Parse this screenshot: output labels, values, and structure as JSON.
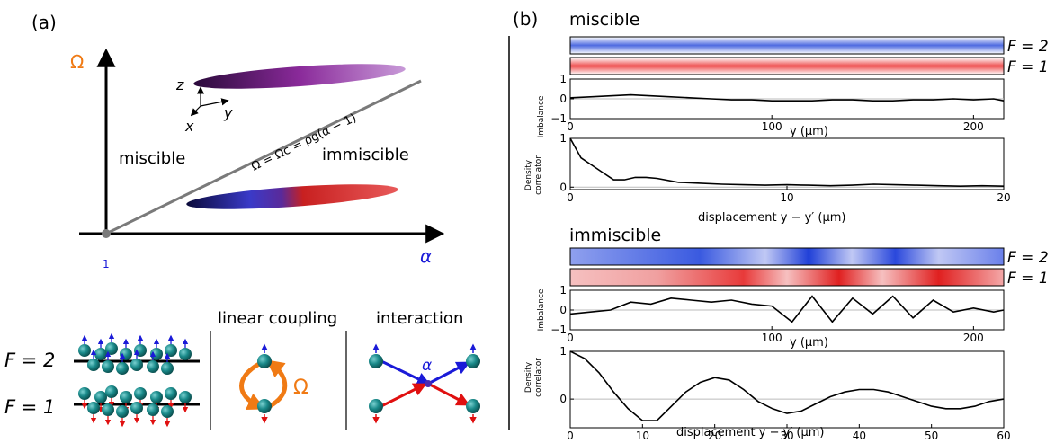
{
  "panel_a": {
    "label": "(a)",
    "omega_axis": "Ω",
    "alpha_axis": "α",
    "origin_tick": "1",
    "phase_miscible": "miscible",
    "phase_immiscible": "immiscible",
    "boundary_label": "Ω = Ωc = ρg(α − 1)",
    "coord_z": "z",
    "coord_x": "x",
    "coord_y": "y",
    "f2_label": "F = 2",
    "f1_label": "F = 1",
    "linear_coupling_title": "linear coupling",
    "interaction_title": "interaction",
    "coupling_symbol": "Ω",
    "interaction_symbol": "α",
    "colors": {
      "omega": "#f07a14",
      "alpha": "#1a1ad8",
      "boundary": "#7a7a7a",
      "atom": "#1a8a8a"
    }
  },
  "panel_b": {
    "label": "(b)",
    "miscible": {
      "title": "miscible",
      "f2_label": "F = 2",
      "f1_label": "F = 1",
      "imbalance_ylabel": "Imbalance",
      "imbalance_ticks_y": [
        "1",
        "0",
        "−1"
      ],
      "imbalance_ticks_x": [
        "0",
        "100",
        "200"
      ],
      "imbalance_xlabel": "y (μm)",
      "corr_ylabel_1": "Density",
      "corr_ylabel_2": "correlator",
      "corr_ticks_y": [
        "1",
        "0"
      ],
      "corr_ticks_x": [
        "0",
        "10",
        "20"
      ],
      "corr_xlabel": "displacement y − y′ (μm)"
    },
    "immiscible": {
      "title": "immiscible",
      "f2_label": "F = 2",
      "f1_label": "F = 1",
      "imbalance_ylabel": "Imbalance",
      "imbalance_ticks_y": [
        "1",
        "0",
        "−1"
      ],
      "imbalance_ticks_x": [
        "0",
        "100",
        "200"
      ],
      "imbalance_xlabel": "y (μm)",
      "corr_ylabel_1": "Density",
      "corr_ylabel_2": "correlator",
      "corr_ticks_y": [
        "1",
        "0"
      ],
      "corr_ticks_x": [
        "0",
        "10",
        "20",
        "30",
        "40",
        "50",
        "60"
      ],
      "corr_xlabel": "displacement y − y′ (μm)"
    }
  },
  "chart_data": [
    {
      "type": "line",
      "xlabel": "y (μm)",
      "ylabel": "Imbalance",
      "xlim": [
        0,
        215
      ],
      "ylim": [
        -1,
        1
      ],
      "x": [
        0,
        10,
        20,
        30,
        40,
        50,
        60,
        70,
        80,
        90,
        100,
        110,
        120,
        130,
        140,
        150,
        160,
        170,
        180,
        190,
        200,
        210,
        215
      ],
      "values": [
        0.05,
        0.1,
        0.15,
        0.2,
        0.15,
        0.1,
        0.05,
        0.0,
        -0.05,
        -0.05,
        -0.1,
        -0.1,
        -0.1,
        -0.05,
        -0.05,
        -0.1,
        -0.1,
        -0.05,
        -0.05,
        0.0,
        -0.05,
        0.0,
        -0.1
      ]
    },
    {
      "type": "line",
      "xlabel": "displacement y − y′ (μm)",
      "ylabel": "Density correlator",
      "xlim": [
        0,
        20
      ],
      "ylim": [
        -0.05,
        1
      ],
      "x": [
        0,
        0.5,
        1,
        1.5,
        2,
        2.5,
        3,
        3.5,
        4,
        5,
        6,
        7,
        8,
        9,
        10,
        11,
        12,
        13,
        14,
        15,
        16,
        17,
        18,
        19,
        20
      ],
      "values": [
        1.0,
        0.6,
        0.45,
        0.3,
        0.15,
        0.15,
        0.2,
        0.2,
        0.18,
        0.1,
        0.08,
        0.06,
        0.05,
        0.04,
        0.05,
        0.04,
        0.03,
        0.04,
        0.06,
        0.05,
        0.04,
        0.03,
        0.02,
        0.03,
        0.02
      ]
    },
    {
      "type": "line",
      "xlabel": "y (μm)",
      "ylabel": "Imbalance",
      "xlim": [
        0,
        215
      ],
      "ylim": [
        -1,
        1
      ],
      "x": [
        0,
        10,
        20,
        30,
        40,
        50,
        60,
        70,
        80,
        90,
        100,
        110,
        120,
        130,
        140,
        150,
        160,
        170,
        180,
        190,
        200,
        210,
        215
      ],
      "values": [
        -0.2,
        -0.1,
        0.0,
        0.4,
        0.3,
        0.6,
        0.5,
        0.4,
        0.5,
        0.3,
        0.2,
        -0.6,
        0.7,
        -0.6,
        0.6,
        -0.2,
        0.7,
        -0.4,
        0.5,
        -0.1,
        0.1,
        -0.1,
        0.0
      ]
    },
    {
      "type": "line",
      "xlabel": "displacement y − y′ (μm)",
      "ylabel": "Density correlator",
      "xlim": [
        0,
        60
      ],
      "ylim": [
        -0.6,
        1
      ],
      "x": [
        0,
        2,
        4,
        6,
        8,
        10,
        12,
        14,
        16,
        18,
        20,
        22,
        24,
        26,
        28,
        30,
        32,
        34,
        36,
        38,
        40,
        42,
        44,
        46,
        48,
        50,
        52,
        54,
        56,
        58,
        60
      ],
      "values": [
        1.0,
        0.85,
        0.55,
        0.15,
        -0.2,
        -0.45,
        -0.45,
        -0.15,
        0.15,
        0.35,
        0.45,
        0.4,
        0.2,
        -0.05,
        -0.2,
        -0.3,
        -0.25,
        -0.1,
        0.05,
        0.15,
        0.2,
        0.2,
        0.15,
        0.05,
        -0.05,
        -0.15,
        -0.2,
        -0.2,
        -0.15,
        -0.05,
        0.0
      ]
    }
  ]
}
